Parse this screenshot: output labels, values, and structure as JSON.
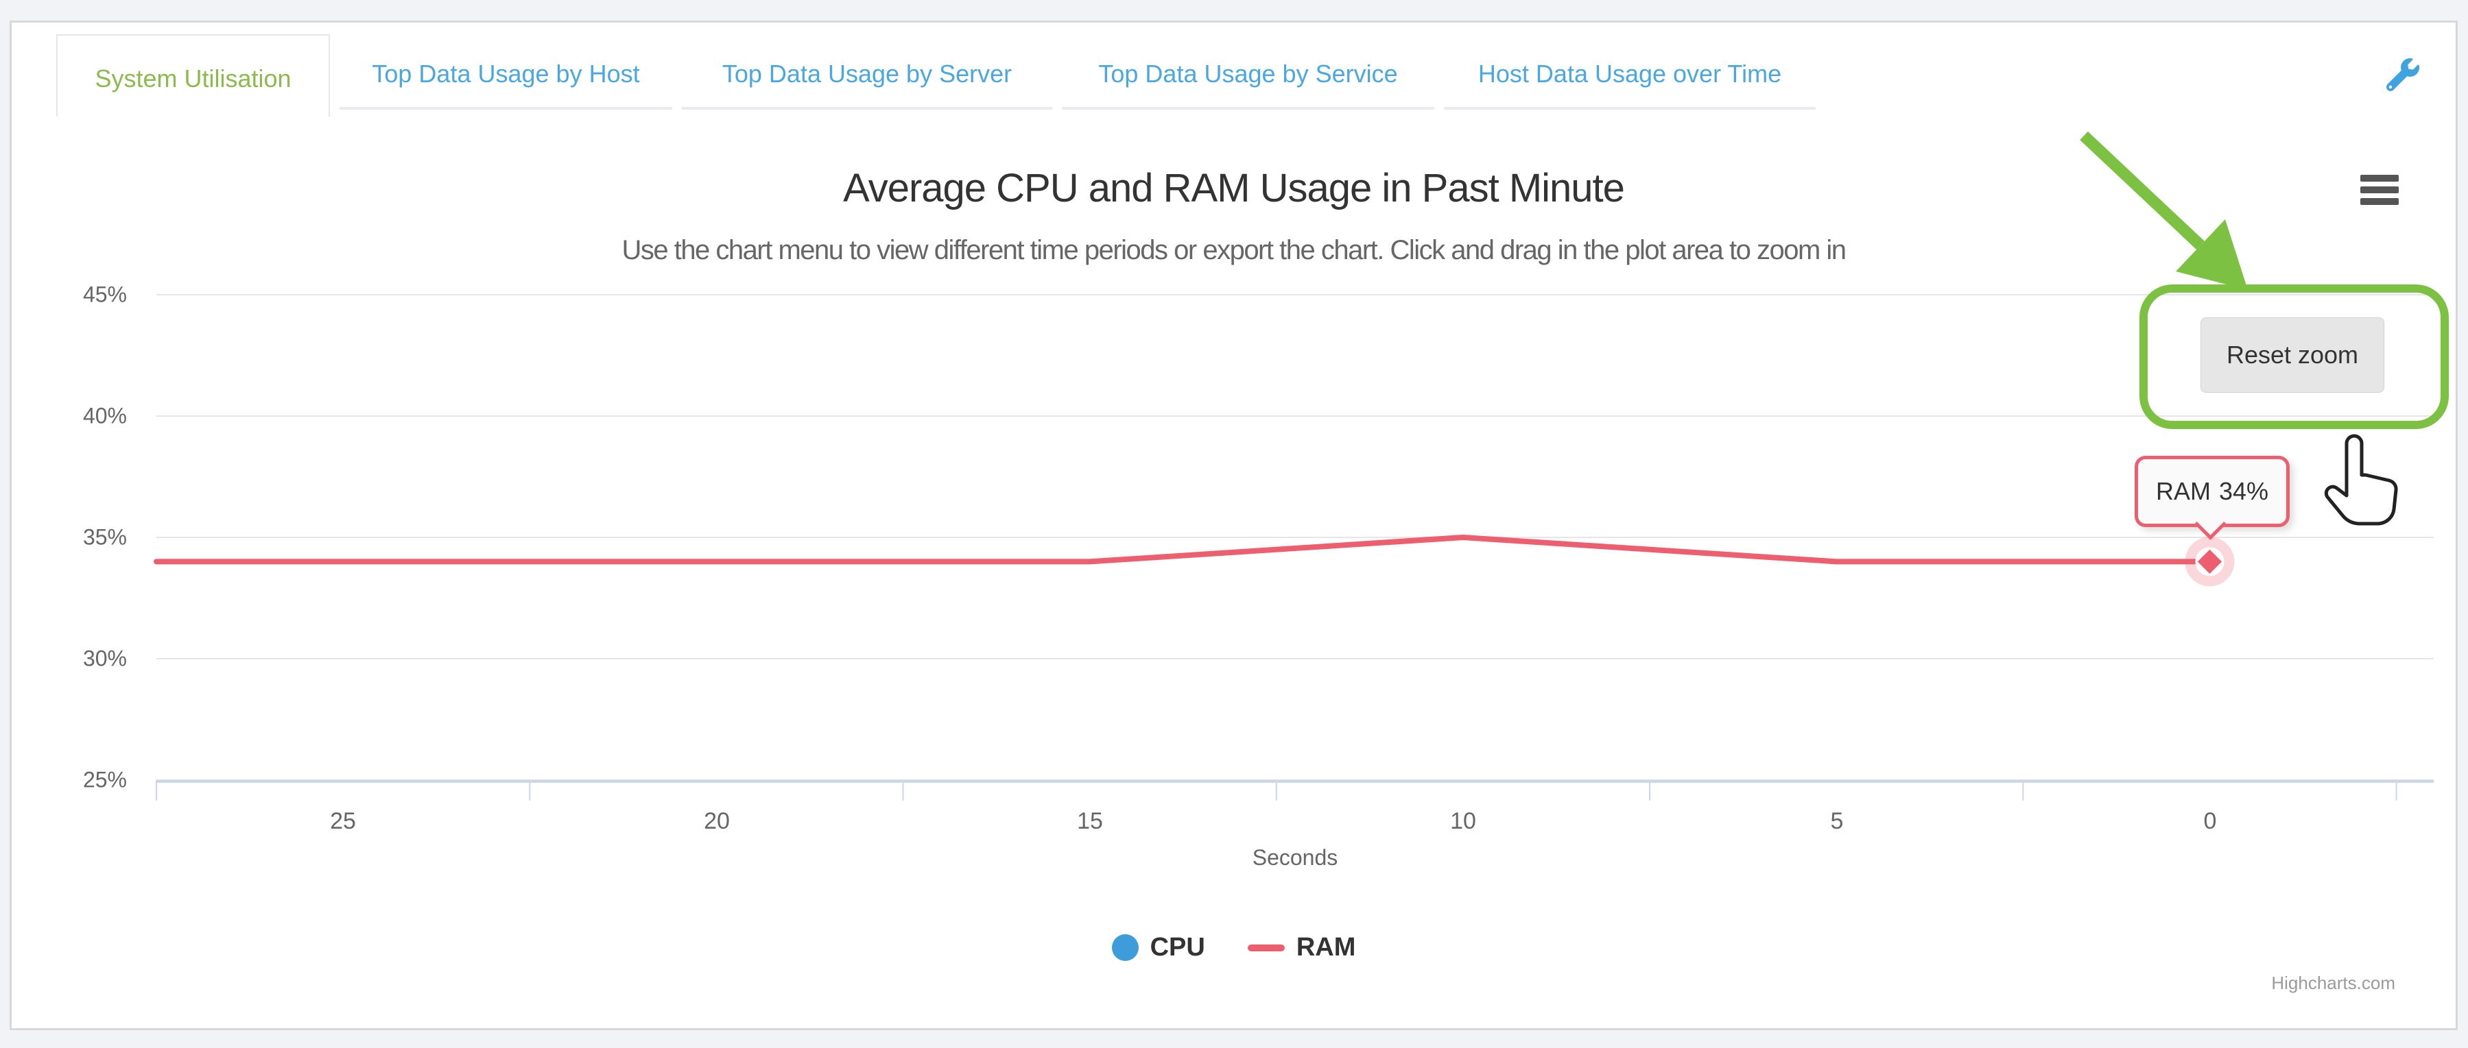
{
  "tabs": [
    {
      "label": "System Utilisation",
      "active": true
    },
    {
      "label": "Top Data Usage by Host",
      "active": false
    },
    {
      "label": "Top Data Usage by Server",
      "active": false
    },
    {
      "label": "Top Data Usage by Service",
      "active": false
    },
    {
      "label": "Host Data Usage over Time",
      "active": false
    }
  ],
  "toolbar": {
    "settings_icon": "wrench-icon"
  },
  "chart_ui": {
    "menu_icon": "hamburger-icon",
    "reset_zoom_label": "Reset zoom",
    "credits": "Highcharts.com"
  },
  "chart_data": {
    "type": "line",
    "title": "Average CPU and RAM Usage in Past Minute",
    "subtitle": "Use the chart menu to view different time periods or export the chart. Click and drag in the plot area to zoom in",
    "xlabel": "Seconds",
    "ylabel": "",
    "x_tick_labels": [
      "25",
      "20",
      "15",
      "10",
      "5",
      "0"
    ],
    "x_tick_label_values": [
      25,
      20,
      15,
      10,
      5,
      0
    ],
    "y_tick_labels": [
      "45%",
      "40%",
      "35%",
      "30%",
      "25%"
    ],
    "y_grid_values": [
      45,
      40,
      35,
      30,
      25
    ],
    "x_tick_values": [
      27.5,
      22.5,
      17.5,
      12.5,
      7.5,
      2.5,
      -2.5
    ],
    "ylim": [
      25,
      45
    ],
    "xlim": [
      27.5,
      -3
    ],
    "x_axis_reversed": true,
    "grid": true,
    "legend_position": "bottom-center",
    "series": [
      {
        "name": "CPU",
        "color": "#3D9CD9",
        "legend_marker": "circle",
        "points": []
      },
      {
        "name": "RAM",
        "color": "#ED5F6E",
        "legend_marker": "line",
        "last_point_marker": "diamond",
        "points": [
          [
            27.5,
            34
          ],
          [
            25,
            34
          ],
          [
            20,
            34
          ],
          [
            15,
            34
          ],
          [
            10,
            35
          ],
          [
            5,
            34
          ],
          [
            0,
            34
          ]
        ]
      }
    ],
    "tooltip": {
      "series": "RAM",
      "value": "34%"
    },
    "annotation": {
      "description": "green arrow and rounded rectangle highlighting the Reset zoom button, with hand cursor",
      "color": "#7CC142"
    }
  },
  "colors": {
    "page_bg": "#F2F3F6",
    "card_bg": "#FFFFFF",
    "card_border": "#D8D8D8",
    "tab_active_text": "#8CBA4D",
    "tab_inactive_text": "#4BA7E0",
    "wrench_blue": "#3FA3E0",
    "grid_line": "#E6E6E6",
    "axis_line": "#CCD6EB",
    "title_text": "#333333",
    "subtitle_text": "#666666",
    "axis_label_text": "#666666",
    "legend_text": "#333333",
    "credits_text": "#999999",
    "cpu_series": "#3D9CD9",
    "ram_series": "#ED5F6E",
    "annotation_green": "#7CC142",
    "tooltip_bg": "#FAFAFA",
    "reset_button_bg": "#E6E6E6"
  }
}
